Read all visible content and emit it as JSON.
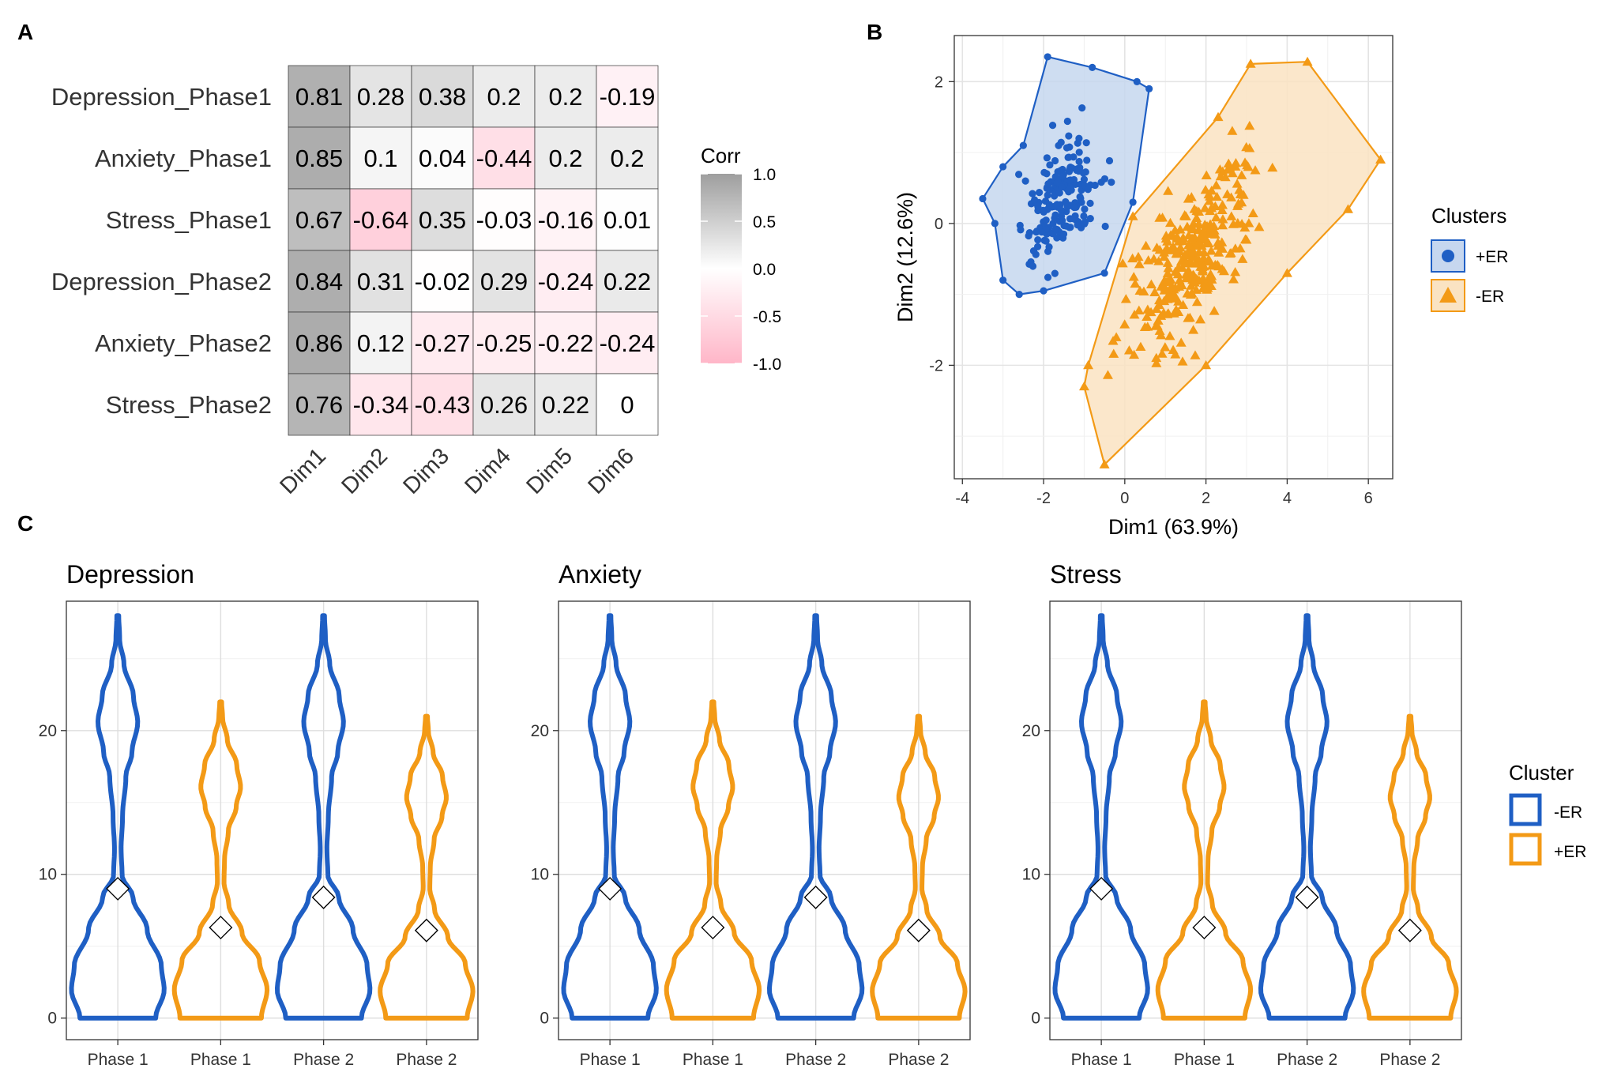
{
  "panel_labels": [
    "A",
    "B",
    "C"
  ],
  "chart_data": [
    {
      "type": "heatmap",
      "panel": "A",
      "rows": [
        "Depression_Phase1",
        "Anxiety_Phase1",
        "Stress_Phase1",
        "Depression_Phase2",
        "Anxiety_Phase2",
        "Stress_Phase2"
      ],
      "columns": [
        "Dim1",
        "Dim2",
        "Dim3",
        "Dim4",
        "Dim5",
        "Dim6"
      ],
      "values": [
        [
          0.81,
          0.28,
          0.38,
          0.2,
          0.2,
          -0.19
        ],
        [
          0.85,
          0.1,
          0.04,
          -0.44,
          0.2,
          0.2
        ],
        [
          0.67,
          -0.64,
          0.35,
          -0.03,
          -0.16,
          0.01
        ],
        [
          0.84,
          0.31,
          -0.02,
          0.29,
          -0.24,
          0.22
        ],
        [
          0.86,
          0.12,
          -0.27,
          -0.25,
          -0.22,
          -0.24
        ],
        [
          0.76,
          -0.34,
          -0.43,
          0.26,
          0.22,
          0
        ]
      ],
      "legend": {
        "title": "Corr",
        "ticks": [
          "1.0",
          "0.5",
          "0.0",
          "-0.5",
          "-1.0"
        ],
        "colors": {
          "high": "#9e9e9e",
          "mid": "#ffffff",
          "low": "#ffb6c8"
        }
      }
    },
    {
      "type": "scatter",
      "panel": "B",
      "xlabel": "Dim1 (63.9%)",
      "ylabel": "Dim2 (12.6%)",
      "xlim": [
        -4.2,
        6.6
      ],
      "ylim": [
        -3.6,
        2.65
      ],
      "x_ticks": [
        -4,
        -2,
        0,
        2,
        4,
        6
      ],
      "y_ticks": [
        -2,
        0,
        2
      ],
      "legend_title": "Clusters",
      "series": [
        {
          "name": "+ER",
          "marker": "circle",
          "color": "#1f5fc4",
          "fill": "#c6d7ef",
          "hull": [
            [
              -1.9,
              2.35
            ],
            [
              -0.8,
              2.2
            ],
            [
              0.3,
              2.0
            ],
            [
              0.6,
              1.9
            ],
            [
              0.2,
              0.3
            ],
            [
              -0.5,
              -0.7
            ],
            [
              -2.0,
              -0.95
            ],
            [
              -2.6,
              -1.0
            ],
            [
              -3.0,
              -0.8
            ],
            [
              -3.2,
              0.0
            ],
            [
              -3.5,
              0.35
            ],
            [
              -3.0,
              0.8
            ],
            [
              -2.5,
              1.1
            ]
          ],
          "center": [
            -1.6,
            0.35
          ],
          "spread": [
            0.9,
            0.75
          ],
          "n": 190
        },
        {
          "name": "-ER",
          "marker": "triangle",
          "color": "#f39a16",
          "fill": "#fae3c2",
          "hull": [
            [
              3.1,
              2.25
            ],
            [
              4.5,
              2.28
            ],
            [
              6.3,
              0.9
            ],
            [
              5.5,
              0.2
            ],
            [
              4.0,
              -0.7
            ],
            [
              2.0,
              -2.0
            ],
            [
              -0.5,
              -3.4
            ],
            [
              -1.0,
              -2.3
            ],
            [
              -0.9,
              -2.0
            ],
            [
              0.2,
              0.1
            ],
            [
              2.3,
              1.5
            ]
          ],
          "center": [
            1.6,
            -0.5
          ],
          "spread": [
            1.4,
            0.9
          ],
          "n": 300
        }
      ]
    },
    {
      "type": "violin",
      "panel": "C",
      "facets": [
        "Depression",
        "Anxiety",
        "Stress"
      ],
      "x_categories": [
        "Phase 1",
        "Phase 1",
        "Phase 2",
        "Phase 2"
      ],
      "y_ticks": [
        0,
        10,
        20
      ],
      "ylim": [
        -1.5,
        29
      ],
      "legend_title": "Cluster",
      "legend": [
        {
          "label": "-ER",
          "color": "#1f5fc4"
        },
        {
          "label": "+ER",
          "color": "#f39a16"
        }
      ],
      "violins": [
        {
          "category": "Phase 1",
          "cluster": "-ER",
          "color": "#1f5fc4",
          "max": 28,
          "mean": 9.0
        },
        {
          "category": "Phase 1",
          "cluster": "+ER",
          "color": "#f39a16",
          "max": 22,
          "mean": 6.3
        },
        {
          "category": "Phase 2",
          "cluster": "-ER",
          "color": "#1f5fc4",
          "max": 28,
          "mean": 8.4
        },
        {
          "category": "Phase 2",
          "cluster": "+ER",
          "color": "#f39a16",
          "max": 21,
          "mean": 6.1
        }
      ]
    }
  ]
}
